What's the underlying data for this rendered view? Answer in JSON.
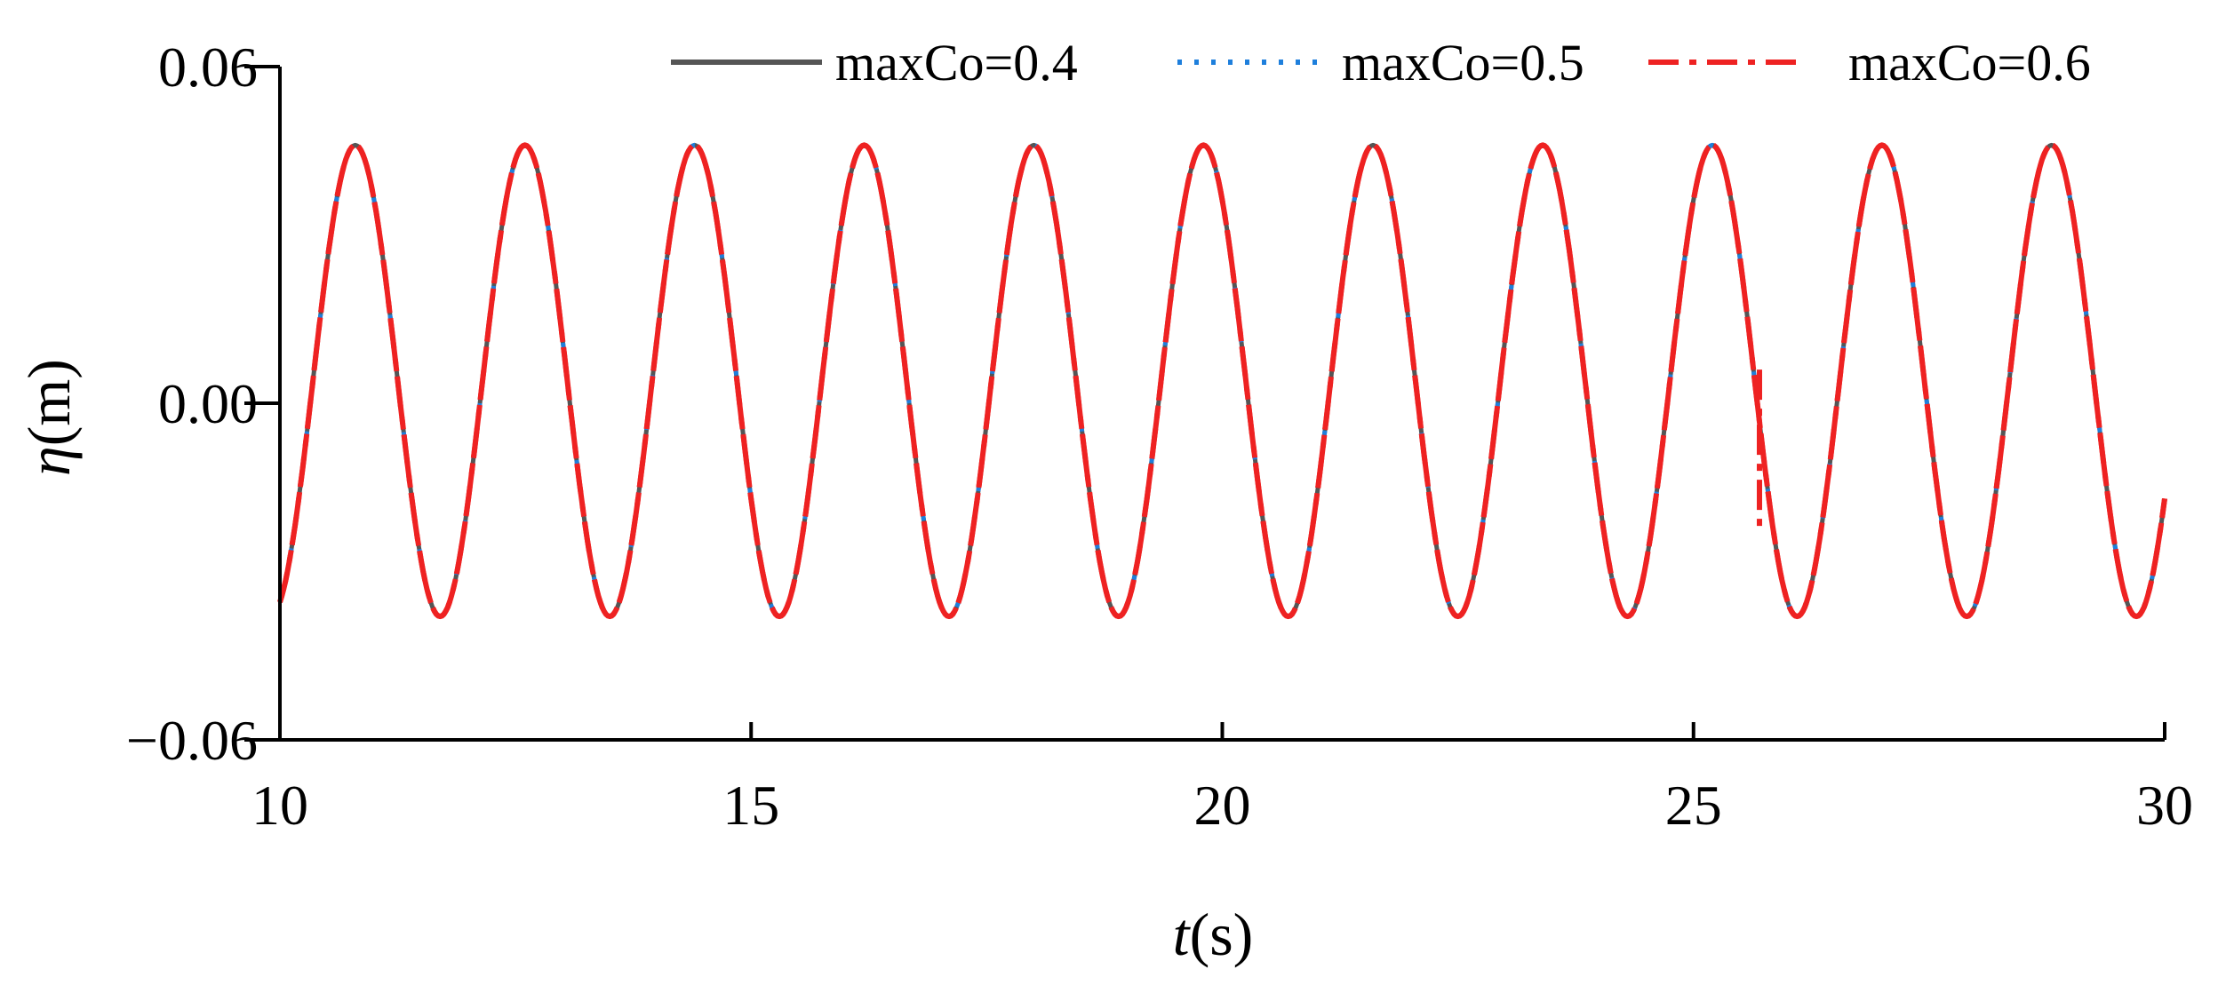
{
  "chart_data": {
    "type": "line",
    "xlabel_italic": "t",
    "xlabel_unit": "(s)",
    "ylabel_italic": "η",
    "ylabel_unit": "(m)",
    "xlim": [
      10,
      30
    ],
    "ylim": [
      -0.06,
      0.06
    ],
    "x_ticks": [
      10,
      15,
      20,
      25,
      30
    ],
    "x_tick_labels": [
      "10",
      "15",
      "20",
      "25",
      "30"
    ],
    "y_ticks": [
      -0.06,
      0.0,
      0.06
    ],
    "y_tick_labels": [
      "−0.06",
      "0.00",
      "0.06"
    ],
    "grid": false,
    "legend_position": "top-right",
    "wave": {
      "period": 1.8,
      "crest": 0.046,
      "trough": -0.038,
      "first_crest_t": 10.8
    },
    "series": [
      {
        "name": "maxCo=0.4",
        "color": "#555555",
        "style": "solid"
      },
      {
        "name": "maxCo=0.5",
        "color": "#1e7fdc",
        "style": "dotted"
      },
      {
        "name": "maxCo=0.6",
        "color": "#ee2222",
        "style": "dashdot"
      }
    ],
    "anomaly": {
      "series": "maxCo=0.6",
      "t": 25.7,
      "y_top": 0.006,
      "y_bottom": -0.022
    }
  }
}
